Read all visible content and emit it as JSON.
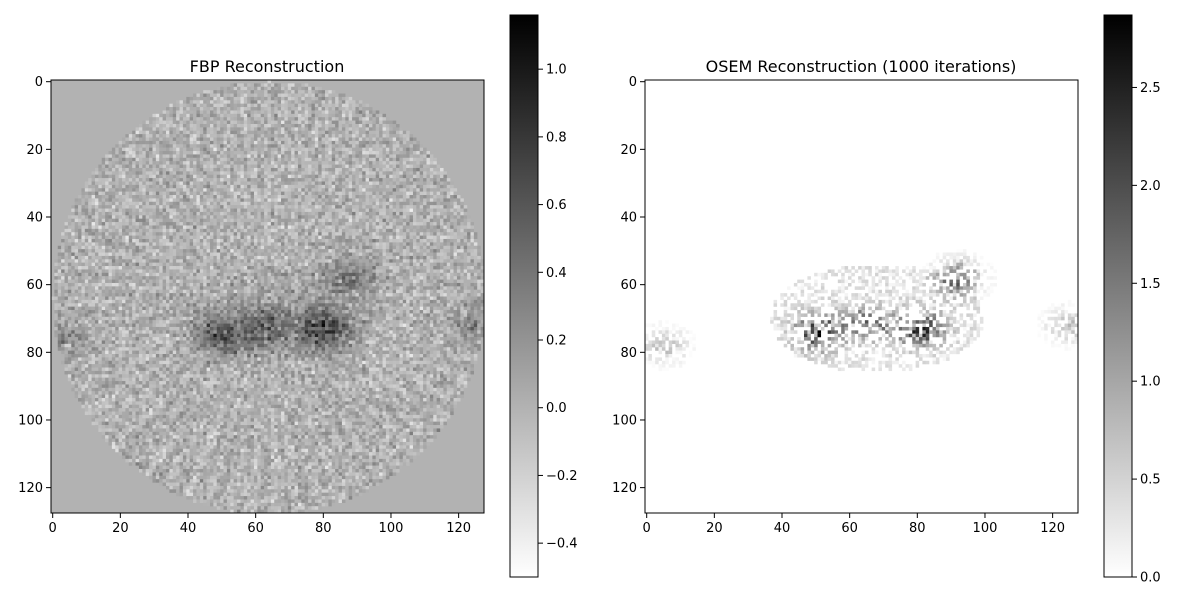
{
  "chart_data": [
    {
      "type": "heatmap",
      "title": "FBP Reconstruction",
      "xlabel": "",
      "ylabel": "",
      "xlim": [
        -0.5,
        127.5
      ],
      "ylim": [
        127.5,
        -0.5
      ],
      "xticks": [
        0,
        20,
        40,
        60,
        80,
        100,
        120
      ],
      "yticks": [
        0,
        20,
        40,
        60,
        80,
        100,
        120
      ],
      "colormap": "Greys",
      "grid": false,
      "image_size": [
        128,
        128
      ],
      "colorbar": {
        "range": [
          -0.5,
          1.16
        ],
        "ticks": [
          -0.4,
          -0.2,
          0.0,
          0.2,
          0.4,
          0.6,
          0.8,
          1.0
        ],
        "tick_labels": [
          "−0.4",
          "−0.2",
          "0.0",
          "0.2",
          "0.4",
          "0.6",
          "0.8",
          "1.0"
        ]
      },
      "description": {
        "background_value": 0.0,
        "disk_center": [
          64,
          64
        ],
        "disk_radius": 64,
        "hotspots": [
          {
            "x": 50,
            "y": 75,
            "value": 0.9
          },
          {
            "x": 80,
            "y": 73,
            "value": 1.1
          },
          {
            "x": 63,
            "y": 72,
            "value": 0.7
          },
          {
            "x": 88,
            "y": 58,
            "value": 0.55
          },
          {
            "x": 3,
            "y": 76,
            "value": 0.4
          },
          {
            "x": 125,
            "y": 72,
            "value": 0.4
          }
        ]
      }
    },
    {
      "type": "heatmap",
      "title": "OSEM Reconstruction (1000 iterations)",
      "xlabel": "",
      "ylabel": "",
      "xlim": [
        -0.5,
        127.5
      ],
      "ylim": [
        127.5,
        -0.5
      ],
      "xticks": [
        0,
        20,
        40,
        60,
        80,
        100,
        120
      ],
      "yticks": [
        0,
        20,
        40,
        60,
        80,
        100,
        120
      ],
      "colormap": "Greys",
      "grid": false,
      "image_size": [
        128,
        128
      ],
      "colorbar": {
        "range": [
          0.0,
          2.87
        ],
        "ticks": [
          0.0,
          0.5,
          1.0,
          1.5,
          2.0,
          2.5
        ],
        "tick_labels": [
          "0.0",
          "0.5",
          "1.0",
          "1.5",
          "2.0",
          "2.5"
        ]
      },
      "description": {
        "background_value": 0.0,
        "hotspots": [
          {
            "x": 51,
            "y": 74,
            "value": 2.8
          },
          {
            "x": 81,
            "y": 73,
            "value": 2.6
          },
          {
            "x": 66,
            "y": 71,
            "value": 1.9
          },
          {
            "x": 92,
            "y": 58,
            "value": 2.2
          },
          {
            "x": 5,
            "y": 78,
            "value": 1.0
          },
          {
            "x": 125,
            "y": 72,
            "value": 1.0
          }
        ]
      }
    }
  ]
}
